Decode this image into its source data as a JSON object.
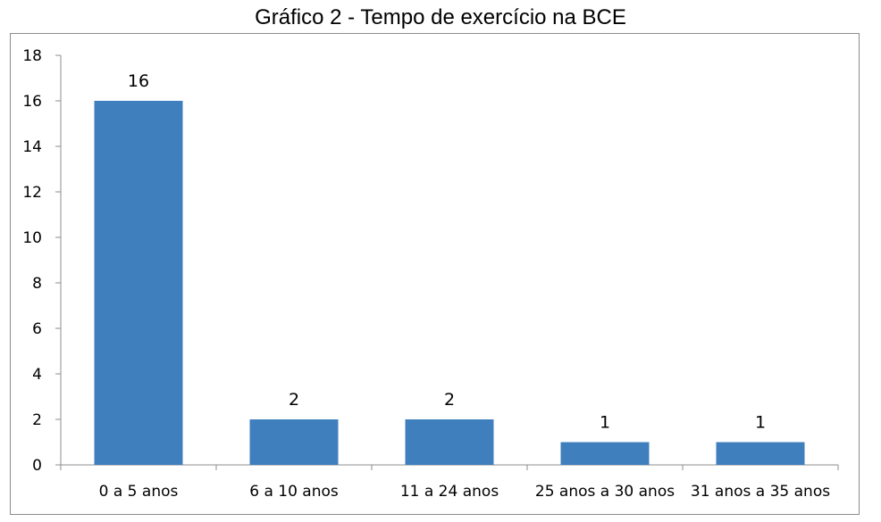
{
  "chart_data": {
    "type": "bar",
    "title": "Gráfico 2 - Tempo de exercício na BCE",
    "categories": [
      "0 a 5 anos",
      "6 a 10 anos",
      "11 a 24 anos",
      "25 anos a 30 anos",
      "31 anos a 35 anos"
    ],
    "values": [
      16,
      2,
      2,
      1,
      1
    ],
    "data_labels": [
      "16",
      "2",
      "2",
      "1",
      "1"
    ],
    "xlabel": "",
    "ylabel": "",
    "ylim": [
      0,
      18
    ],
    "yticks": [
      0,
      2,
      4,
      6,
      8,
      10,
      12,
      14,
      16,
      18
    ],
    "grid": false,
    "legend": "none",
    "bar_color": "#3f7fbd",
    "axis_color": "#8c8c8c"
  }
}
